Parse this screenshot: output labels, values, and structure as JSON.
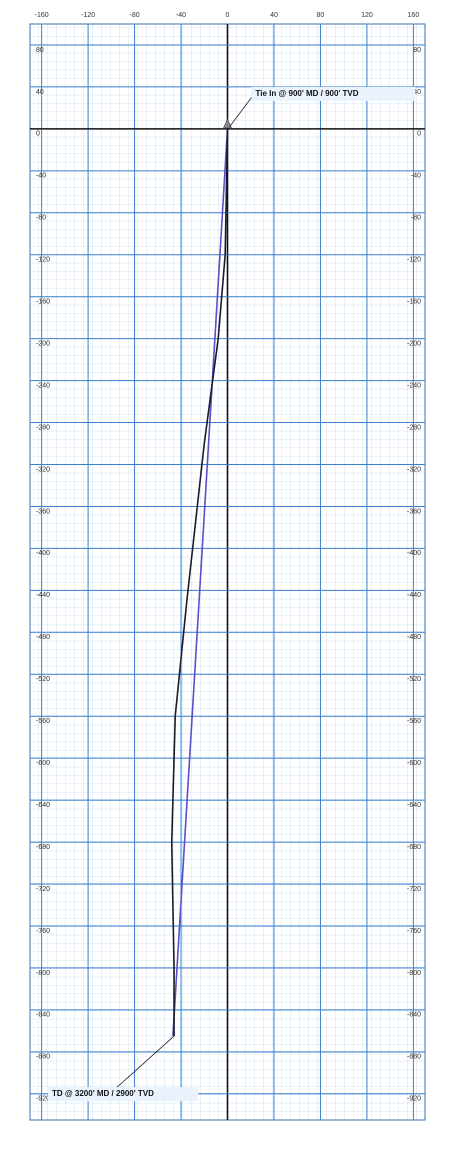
{
  "chart_data": {
    "type": "line",
    "xlim": [
      -170,
      170
    ],
    "ylim": [
      100,
      -945
    ],
    "xticks": [
      -160,
      -120,
      -80,
      -40,
      0,
      40,
      80,
      120,
      160
    ],
    "yticks": [
      80,
      40,
      0,
      -40,
      -80,
      -120,
      -160,
      -200,
      -240,
      -280,
      -320,
      -360,
      -400,
      -440,
      -480,
      -520,
      -560,
      -600,
      -640,
      -680,
      -720,
      -760,
      -800,
      -840,
      -880,
      -920
    ],
    "grid": true,
    "series": [
      {
        "color": "#5a4fc8",
        "x": [
          0,
          -47
        ],
        "y": [
          0,
          -865
        ]
      },
      {
        "color": "#1a1a2a",
        "x": [
          0,
          -2,
          -8,
          -20,
          -35,
          -45,
          -48,
          -46,
          -46
        ],
        "y": [
          0,
          -120,
          -200,
          -300,
          -450,
          -560,
          -680,
          -800,
          -865
        ]
      }
    ],
    "annotations": [
      {
        "text": "Tie In @ 900' MD / 900' TVD",
        "x": 0,
        "y": 0
      },
      {
        "text": "TD @ 3200' MD / 2900' TVD",
        "x": -46,
        "y": -865
      }
    ]
  }
}
